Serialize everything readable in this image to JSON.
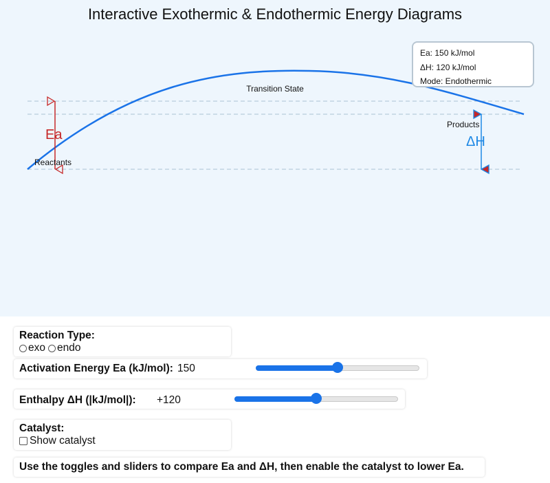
{
  "title": "Interactive Exothermic & Endothermic Energy Diagrams",
  "diagram": {
    "transition_state_label": "Transition State",
    "reactants_label": "Reactants",
    "products_label": "Products",
    "ea_label": "Ea",
    "dh_label": "ΔH",
    "curve_color": "#1a73e8",
    "ea_color": "#c62828",
    "dh_color": "#1e88e5"
  },
  "tooltip": {
    "ea": "Ea: 150 kJ/mol",
    "dh": "ΔH: 120 kJ/mol",
    "mode": "Mode: Endothermic"
  },
  "controls": {
    "reaction_type": {
      "label": "Reaction Type:",
      "options": [
        "exo",
        "endo"
      ],
      "selected": null
    },
    "activation": {
      "label": "Activation Energy Ea (kJ/mol):",
      "value": "150",
      "fraction": 0.5
    },
    "enthalpy": {
      "label": "Enthalpy ΔH (|kJ/mol|):",
      "value": "+120",
      "fraction": 0.5
    },
    "catalyst": {
      "label": "Catalyst:",
      "checkbox_label": "Show catalyst",
      "checked": false
    },
    "instructions": "Use the toggles and sliders to compare Ea and ΔH, then enable the catalyst to lower Ea."
  }
}
